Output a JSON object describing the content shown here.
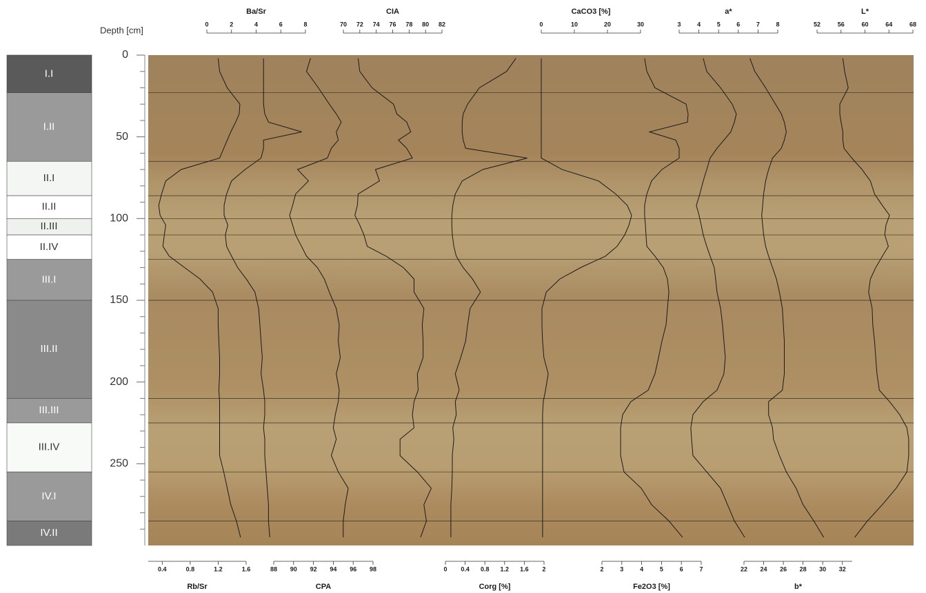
{
  "chart_data": {
    "type": "line",
    "y_label": "Depth [cm]",
    "ylim": [
      0,
      300
    ],
    "yticks": [
      0,
      50,
      100,
      150,
      200,
      250
    ],
    "yminorticks": [
      10,
      20,
      30,
      40,
      60,
      70,
      80,
      90,
      110,
      120,
      130,
      140,
      160,
      170,
      180,
      190,
      210,
      220,
      230,
      240,
      260,
      270,
      280,
      290
    ],
    "line_color": "#1a1a1a",
    "depth": [
      2,
      10,
      20,
      30,
      36,
      41,
      47,
      52,
      57,
      63,
      70,
      77,
      85,
      92,
      98,
      104,
      110,
      117,
      123,
      130,
      137,
      145,
      155,
      165,
      175,
      185,
      195,
      205,
      212,
      220,
      228,
      235,
      245,
      255,
      265,
      275,
      285,
      295
    ],
    "series": [
      {
        "name": "Rb/Sr",
        "axis": "bottom",
        "xlim": [
          0.2,
          1.6
        ],
        "xticks": [
          0.4,
          0.8,
          1.2,
          1.6
        ],
        "values": [
          1.2,
          1.22,
          1.33,
          1.51,
          1.5,
          1.45,
          1.38,
          1.33,
          1.28,
          1.22,
          0.67,
          0.45,
          0.39,
          0.35,
          0.37,
          0.45,
          0.43,
          0.41,
          0.5,
          0.72,
          0.94,
          1.12,
          1.2,
          1.2,
          1.21,
          1.22,
          1.22,
          1.21,
          1.22,
          1.22,
          1.22,
          1.22,
          1.22,
          1.28,
          1.33,
          1.38,
          1.46,
          1.52
        ]
      },
      {
        "name": "Ba/Sr",
        "axis": "top",
        "xlim": [
          0,
          8
        ],
        "xticks": [
          0,
          2,
          4,
          6,
          8
        ],
        "values": [
          4.6,
          4.6,
          4.6,
          4.6,
          4.7,
          5.0,
          7.7,
          4.6,
          4.6,
          4.4,
          3.1,
          2.0,
          1.6,
          1.4,
          1.4,
          1.7,
          1.5,
          1.6,
          2.0,
          2.5,
          3.2,
          3.9,
          4.2,
          4.3,
          4.4,
          4.5,
          4.4,
          4.6,
          4.7,
          4.7,
          4.6,
          4.7,
          4.7,
          4.8,
          4.9,
          5.0,
          5.0,
          5.1
        ]
      },
      {
        "name": "CPA",
        "axis": "bottom",
        "xlim": [
          88,
          98
        ],
        "xticks": [
          88,
          90,
          92,
          94,
          96,
          98
        ],
        "values": [
          91.7,
          91.3,
          92.5,
          93.6,
          94.3,
          94.8,
          94.3,
          94.5,
          93.8,
          93.4,
          90.4,
          91.5,
          90.2,
          89.9,
          89.6,
          89.9,
          90.2,
          90.8,
          91.3,
          92.4,
          93.1,
          93.6,
          94.3,
          94.6,
          94.5,
          94.7,
          94.3,
          94.6,
          94.5,
          94.2,
          94.0,
          94.3,
          93.8,
          94.5,
          95.5,
          95.2,
          95.0,
          95.0
        ]
      },
      {
        "name": "CIA",
        "axis": "top",
        "xlim": [
          70,
          82
        ],
        "xticks": [
          70,
          72,
          74,
          76,
          78,
          80,
          82
        ],
        "values": [
          71.8,
          72.0,
          73.5,
          76.1,
          76.5,
          77.7,
          78.2,
          76.7,
          77.7,
          78.4,
          73.9,
          74.4,
          71.8,
          71.7,
          71.4,
          72.0,
          72.5,
          72.9,
          75.2,
          77.3,
          78.6,
          78.6,
          79.8,
          79.6,
          79.7,
          79.7,
          79.0,
          79.1,
          78.6,
          78.4,
          78.6,
          76.9,
          76.9,
          79.0,
          80.7,
          79.8,
          80.1,
          79.4
        ]
      },
      {
        "name": "Corg [%]",
        "axis": "bottom",
        "xlim": [
          0,
          2
        ],
        "xticks": [
          0,
          0.4,
          0.8,
          1.2,
          1.6,
          2
        ],
        "values": [
          1.43,
          1.24,
          0.69,
          0.45,
          0.36,
          0.34,
          0.34,
          0.36,
          0.41,
          1.66,
          0.76,
          0.34,
          0.2,
          0.15,
          0.13,
          0.13,
          0.14,
          0.17,
          0.22,
          0.36,
          0.55,
          0.71,
          0.5,
          0.45,
          0.41,
          0.31,
          0.2,
          0.28,
          0.2,
          0.22,
          0.15,
          0.17,
          0.14,
          0.14,
          0.13,
          0.11,
          0.11,
          0.11
        ]
      },
      {
        "name": "CaCO3 [%]",
        "axis": "top",
        "xlim": [
          0,
          30
        ],
        "xticks": [
          0,
          10,
          20,
          30
        ],
        "values": [
          0,
          0,
          0,
          0,
          0,
          0,
          0,
          0,
          0,
          0,
          6.3,
          17.3,
          22.5,
          26.0,
          27.3,
          26.5,
          25.2,
          22.9,
          19.4,
          11.9,
          5.6,
          1.5,
          0.2,
          0.2,
          0.4,
          0.8,
          2.1,
          1.3,
          0.6,
          0.4,
          0.4,
          0.4,
          0.4,
          0.4,
          0.4,
          0.4,
          0.4,
          0.4
        ]
      },
      {
        "name": "Fe2O3 [%]",
        "axis": "bottom",
        "xlim": [
          2,
          7
        ],
        "xticks": [
          2,
          3,
          4,
          5,
          6,
          7
        ],
        "values": [
          4.15,
          4.26,
          4.67,
          6.24,
          6.34,
          6.31,
          4.4,
          5.72,
          5.89,
          5.89,
          5.02,
          4.5,
          4.26,
          4.15,
          4.15,
          4.19,
          4.22,
          4.26,
          4.67,
          5.09,
          5.3,
          5.37,
          5.3,
          5.23,
          5.02,
          4.85,
          4.67,
          4.33,
          3.46,
          3.04,
          2.94,
          2.94,
          2.94,
          3.11,
          3.98,
          4.5,
          5.37,
          6.06
        ]
      },
      {
        "name": "a*",
        "axis": "top",
        "xlim": [
          3,
          8
        ],
        "xticks": [
          3,
          4,
          5,
          6,
          7,
          8
        ],
        "values": [
          4.22,
          4.4,
          5.1,
          5.69,
          5.9,
          5.8,
          5.62,
          5.27,
          4.92,
          4.57,
          4.4,
          4.22,
          4.05,
          3.87,
          4.01,
          4.12,
          4.22,
          4.4,
          4.57,
          4.78,
          4.85,
          4.92,
          5.1,
          5.2,
          5.27,
          5.34,
          5.27,
          4.92,
          4.22,
          3.7,
          3.59,
          3.63,
          3.7,
          4.4,
          5.1,
          5.45,
          5.8,
          6.32
        ]
      },
      {
        "name": "b*",
        "axis": "bottom",
        "xlim": [
          22,
          33
        ],
        "xticks": [
          22,
          24,
          26,
          28,
          30,
          32
        ],
        "values": [
          22.6,
          23.1,
          24.2,
          25.2,
          25.8,
          26.1,
          26.3,
          26.1,
          25.8,
          24.9,
          24.5,
          24.2,
          24.0,
          23.9,
          23.8,
          23.9,
          24.0,
          24.2,
          24.5,
          24.9,
          25.3,
          25.6,
          25.9,
          26.0,
          26.1,
          26.1,
          26.1,
          25.9,
          24.5,
          24.5,
          24.9,
          25.0,
          25.6,
          26.3,
          27.3,
          28.0,
          29.1,
          30.1
        ]
      },
      {
        "name": "L*",
        "axis": "top",
        "xlim": [
          52,
          68
        ],
        "xticks": [
          52,
          56,
          60,
          64,
          68
        ],
        "values": [
          56.3,
          56.6,
          57.2,
          55.8,
          55.8,
          56.0,
          56.3,
          56.3,
          56.5,
          57.8,
          59.5,
          60.9,
          61.6,
          62.9,
          64.1,
          63.5,
          63.3,
          63.9,
          62.9,
          61.8,
          60.9,
          60.6,
          61.2,
          61.3,
          61.6,
          61.8,
          62.0,
          62.4,
          64.1,
          65.8,
          67.0,
          67.3,
          67.3,
          67.0,
          65.2,
          62.9,
          60.4,
          58.3
        ]
      }
    ],
    "units": [
      {
        "name": "I.I",
        "top": 0,
        "bottom": 23,
        "color": "#5a5a5a"
      },
      {
        "name": "I.II",
        "top": 23,
        "bottom": 65,
        "color": "#9a9a9a"
      },
      {
        "name": "II.I",
        "top": 65,
        "bottom": 86,
        "color": "#f4f6f4"
      },
      {
        "name": "II.II",
        "top": 86,
        "bottom": 100,
        "color": "#ffffff"
      },
      {
        "name": "II.III",
        "top": 100,
        "bottom": 110,
        "color": "#eff1ef"
      },
      {
        "name": "II.IV",
        "top": 110,
        "bottom": 125,
        "color": "#ffffff"
      },
      {
        "name": "III.I",
        "top": 125,
        "bottom": 150,
        "color": "#9a9a9a"
      },
      {
        "name": "III.II",
        "top": 150,
        "bottom": 210,
        "color": "#8a8a8a"
      },
      {
        "name": "III.III",
        "top": 210,
        "bottom": 225,
        "color": "#9a9a9a"
      },
      {
        "name": "III.IV",
        "top": 225,
        "bottom": 255,
        "color": "#f8faf8"
      },
      {
        "name": "IV.I",
        "top": 255,
        "bottom": 285,
        "color": "#9a9a9a"
      },
      {
        "name": "IV.II",
        "top": 285,
        "bottom": 300,
        "color": "#7a7a7a"
      }
    ]
  }
}
